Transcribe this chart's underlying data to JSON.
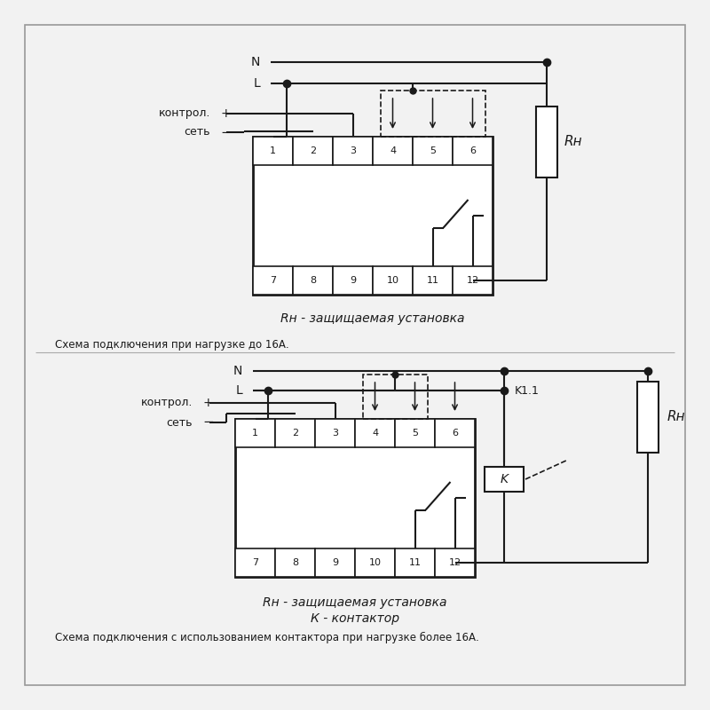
{
  "bg_color": "#f2f2f2",
  "line_color": "#1a1a1a",
  "text_color": "#1a1a1a",
  "title1": "Rн - защищаемая установка",
  "caption1": "Схема подключения при нагрузке до 16А.",
  "title2_line1": "Rн - защищаемая установка",
  "title2_line2": "К - контактор",
  "caption2": "Схема подключения с использованием контактора при нагрузке более 16А.",
  "label_N": "N",
  "label_L": "L",
  "label_plus": "+",
  "label_minus": "−",
  "label_kontrol": "контрол.",
  "label_set": "сеть",
  "label_Rh": "Rн",
  "label_K1": "K1.1",
  "label_K2": "K"
}
